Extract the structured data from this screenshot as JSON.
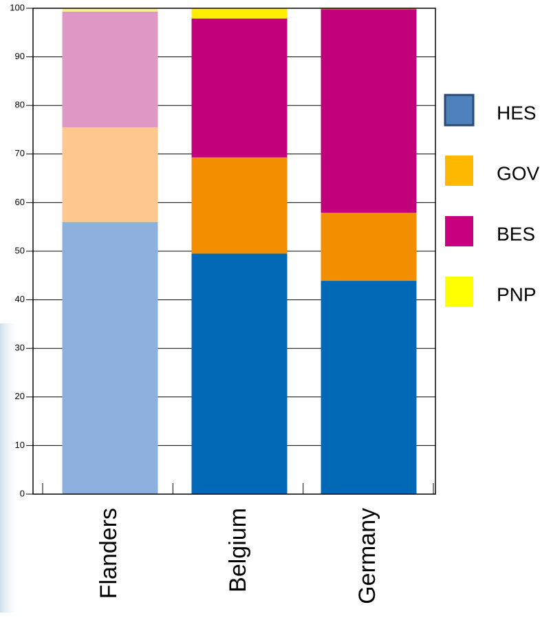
{
  "chart_data": {
    "type": "stacked_bar",
    "categories": [
      "Flanders",
      "Belgium",
      "Germany"
    ],
    "series": [
      {
        "name": "HES",
        "color": "#4f81bd",
        "colors": [
          "#8eb0de",
          "#0068b5",
          "#0068b5"
        ],
        "values": [
          56,
          49.5,
          43.9
        ]
      },
      {
        "name": "GOV",
        "color": "#ffb800",
        "colors": [
          "#fcc890",
          "#f28e00",
          "#f28e00"
        ],
        "values": [
          19.5,
          19.8,
          14
        ]
      },
      {
        "name": "BES",
        "color": "#c8007f",
        "colors": [
          "#dd98c4",
          "#c2007a",
          "#c2007a"
        ],
        "values": [
          23.8,
          28.6,
          41.9
        ]
      },
      {
        "name": "PNP",
        "color": "#ffff00",
        "colors": [
          "#f5f090",
          "#ffee00",
          "#f5a623"
        ],
        "values": [
          0.7,
          2.1,
          0.2
        ]
      }
    ],
    "ylim": [
      0,
      100
    ],
    "yticks": [
      0,
      10,
      20,
      30,
      40,
      50,
      60,
      70,
      80,
      90,
      100
    ],
    "grid": true
  }
}
